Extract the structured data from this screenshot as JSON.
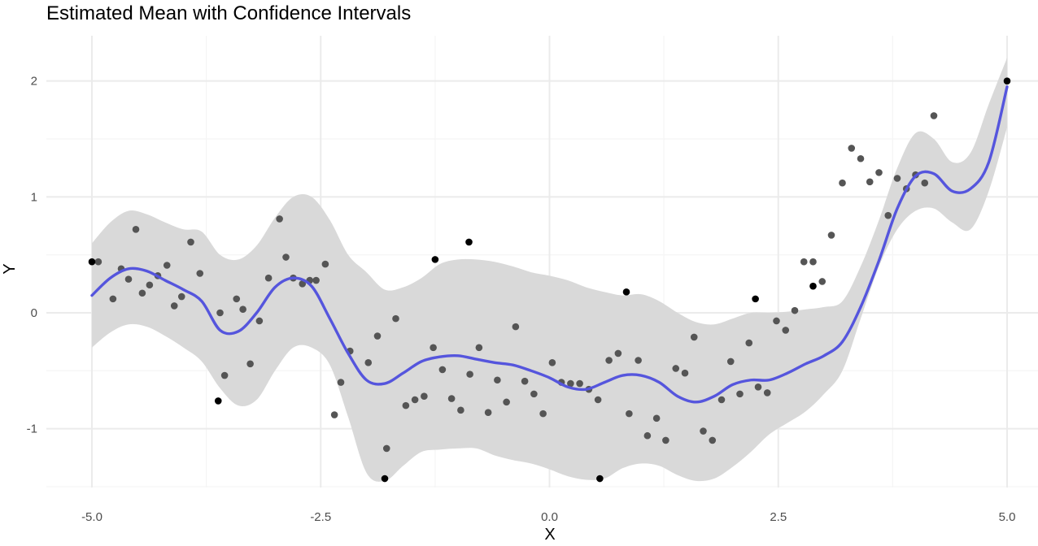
{
  "chart_data": {
    "type": "line",
    "title": "Estimated Mean with Confidence Intervals",
    "xlabel": "X",
    "ylabel": "Y",
    "xlim": [
      -5.0,
      5.0
    ],
    "ylim": [
      -1.5,
      2.0
    ],
    "x_ticks": [
      -5.0,
      -2.5,
      0.0,
      2.5,
      5.0
    ],
    "x_tick_labels": [
      "-5.0",
      "-2.5",
      "0.0",
      "2.5",
      "5.0"
    ],
    "y_ticks": [
      -1,
      0,
      1,
      2
    ],
    "y_tick_labels": [
      "-1",
      "0",
      "1",
      "2"
    ],
    "grid": true,
    "legend": "none",
    "colors": {
      "mean_line": "#5555dd",
      "ribbon": "#d9d9d9",
      "points": "#555555",
      "highlight_points": "#000000",
      "grid_major": "#ebebeb",
      "grid_minor": "#f5f5f5"
    },
    "series": [
      {
        "kind": "ribbon",
        "x": [
          -5.0,
          -4.8,
          -4.6,
          -4.4,
          -4.2,
          -4.0,
          -3.8,
          -3.6,
          -3.4,
          -3.2,
          -3.0,
          -2.8,
          -2.6,
          -2.4,
          -2.2,
          -2.0,
          -1.8,
          -1.6,
          -1.4,
          -1.2,
          -1.0,
          -0.8,
          -0.6,
          -0.4,
          -0.2,
          0.0,
          0.2,
          0.4,
          0.6,
          0.8,
          1.0,
          1.2,
          1.4,
          1.6,
          1.8,
          2.0,
          2.2,
          2.4,
          2.6,
          2.8,
          3.0,
          3.2,
          3.4,
          3.6,
          3.8,
          4.0,
          4.2,
          4.4,
          4.6,
          4.8,
          5.0
        ],
        "lower": [
          -0.3,
          -0.17,
          -0.1,
          -0.12,
          -0.2,
          -0.3,
          -0.42,
          -0.65,
          -0.8,
          -0.75,
          -0.5,
          -0.3,
          -0.3,
          -0.45,
          -0.9,
          -1.38,
          -1.45,
          -1.32,
          -1.2,
          -1.18,
          -1.17,
          -1.17,
          -1.23,
          -1.27,
          -1.3,
          -1.35,
          -1.41,
          -1.44,
          -1.43,
          -1.34,
          -1.3,
          -1.32,
          -1.4,
          -1.45,
          -1.43,
          -1.33,
          -1.2,
          -1.05,
          -0.95,
          -0.85,
          -0.7,
          -0.5,
          -0.05,
          0.4,
          0.72,
          0.88,
          0.9,
          0.78,
          0.72,
          1.05,
          1.6
        ],
        "upper": [
          0.6,
          0.78,
          0.88,
          0.85,
          0.78,
          0.72,
          0.7,
          0.5,
          0.46,
          0.58,
          0.82,
          1.0,
          1.0,
          0.8,
          0.5,
          0.35,
          0.2,
          0.22,
          0.3,
          0.42,
          0.46,
          0.46,
          0.44,
          0.4,
          0.35,
          0.32,
          0.28,
          0.22,
          0.18,
          0.15,
          0.16,
          0.1,
          0.0,
          -0.08,
          -0.1,
          -0.05,
          0.0,
          0.0,
          0.01,
          0.03,
          0.05,
          0.1,
          0.4,
          0.8,
          1.25,
          1.55,
          1.5,
          1.3,
          1.38,
          1.8,
          2.2
        ]
      },
      {
        "kind": "line",
        "x": [
          -5.0,
          -4.8,
          -4.6,
          -4.4,
          -4.2,
          -4.0,
          -3.8,
          -3.6,
          -3.4,
          -3.2,
          -3.0,
          -2.8,
          -2.6,
          -2.4,
          -2.2,
          -2.0,
          -1.8,
          -1.6,
          -1.4,
          -1.2,
          -1.0,
          -0.8,
          -0.6,
          -0.4,
          -0.2,
          0.0,
          0.2,
          0.4,
          0.6,
          0.8,
          1.0,
          1.2,
          1.4,
          1.6,
          1.8,
          2.0,
          2.2,
          2.4,
          2.6,
          2.8,
          3.0,
          3.2,
          3.4,
          3.6,
          3.8,
          4.0,
          4.2,
          4.4,
          4.6,
          4.8,
          5.0
        ],
        "y": [
          0.15,
          0.3,
          0.38,
          0.36,
          0.28,
          0.2,
          0.1,
          -0.15,
          -0.16,
          0.0,
          0.22,
          0.3,
          0.23,
          -0.05,
          -0.35,
          -0.58,
          -0.61,
          -0.52,
          -0.42,
          -0.38,
          -0.37,
          -0.4,
          -0.43,
          -0.45,
          -0.5,
          -0.56,
          -0.64,
          -0.66,
          -0.6,
          -0.54,
          -0.54,
          -0.6,
          -0.72,
          -0.77,
          -0.72,
          -0.62,
          -0.58,
          -0.58,
          -0.52,
          -0.44,
          -0.37,
          -0.25,
          0.05,
          0.45,
          0.9,
          1.18,
          1.2,
          1.05,
          1.07,
          1.3,
          1.95
        ]
      },
      {
        "kind": "points",
        "points": [
          [
            -4.93,
            0.44
          ],
          [
            -4.77,
            0.12
          ],
          [
            -4.68,
            0.38
          ],
          [
            -4.6,
            0.29
          ],
          [
            -4.52,
            0.72
          ],
          [
            -4.45,
            0.17
          ],
          [
            -4.37,
            0.24
          ],
          [
            -4.28,
            0.32
          ],
          [
            -4.18,
            0.41
          ],
          [
            -4.1,
            0.06
          ],
          [
            -4.02,
            0.14
          ],
          [
            -3.92,
            0.61
          ],
          [
            -3.82,
            0.34
          ],
          [
            -3.6,
            0.0
          ],
          [
            -3.55,
            -0.54
          ],
          [
            -3.42,
            0.12
          ],
          [
            -3.35,
            0.03
          ],
          [
            -3.27,
            -0.44
          ],
          [
            -3.17,
            -0.07
          ],
          [
            -3.07,
            0.3
          ],
          [
            -2.95,
            0.81
          ],
          [
            -2.88,
            0.48
          ],
          [
            -2.8,
            0.3
          ],
          [
            -2.7,
            0.25
          ],
          [
            -2.62,
            0.28
          ],
          [
            -2.55,
            0.28
          ],
          [
            -2.45,
            0.42
          ],
          [
            -2.35,
            -0.88
          ],
          [
            -2.28,
            -0.6
          ],
          [
            -2.18,
            -0.33
          ],
          [
            -1.98,
            -0.43
          ],
          [
            -1.88,
            -0.2
          ],
          [
            -1.78,
            -1.17
          ],
          [
            -1.68,
            -0.05
          ],
          [
            -1.57,
            -0.8
          ],
          [
            -1.47,
            -0.75
          ],
          [
            -1.37,
            -0.72
          ],
          [
            -1.27,
            -0.3
          ],
          [
            -1.17,
            -0.49
          ],
          [
            -1.07,
            -0.74
          ],
          [
            -0.97,
            -0.84
          ],
          [
            -0.87,
            -0.53
          ],
          [
            -0.77,
            -0.3
          ],
          [
            -0.67,
            -0.86
          ],
          [
            -0.57,
            -0.58
          ],
          [
            -0.47,
            -0.77
          ],
          [
            -0.37,
            -0.12
          ],
          [
            -0.27,
            -0.59
          ],
          [
            -0.17,
            -0.7
          ],
          [
            -0.07,
            -0.87
          ],
          [
            0.03,
            -0.43
          ],
          [
            0.13,
            -0.6
          ],
          [
            0.23,
            -0.61
          ],
          [
            0.33,
            -0.61
          ],
          [
            0.43,
            -0.66
          ],
          [
            0.53,
            -0.75
          ],
          [
            0.65,
            -0.41
          ],
          [
            0.75,
            -0.35
          ],
          [
            0.87,
            -0.87
          ],
          [
            0.97,
            -0.41
          ],
          [
            1.07,
            -1.06
          ],
          [
            1.17,
            -0.91
          ],
          [
            1.27,
            -1.1
          ],
          [
            1.38,
            -0.48
          ],
          [
            1.48,
            -0.52
          ],
          [
            1.58,
            -0.21
          ],
          [
            1.68,
            -1.02
          ],
          [
            1.78,
            -1.1
          ],
          [
            1.88,
            -0.75
          ],
          [
            1.98,
            -0.42
          ],
          [
            2.08,
            -0.7
          ],
          [
            2.18,
            -0.26
          ],
          [
            2.28,
            -0.64
          ],
          [
            2.38,
            -0.69
          ],
          [
            2.48,
            -0.07
          ],
          [
            2.58,
            -0.15
          ],
          [
            2.68,
            0.02
          ],
          [
            2.78,
            0.44
          ],
          [
            2.88,
            0.44
          ],
          [
            2.98,
            0.27
          ],
          [
            3.08,
            0.67
          ],
          [
            3.2,
            1.12
          ],
          [
            3.3,
            1.42
          ],
          [
            3.4,
            1.33
          ],
          [
            3.5,
            1.13
          ],
          [
            3.6,
            1.21
          ],
          [
            3.7,
            0.84
          ],
          [
            3.8,
            1.16
          ],
          [
            3.9,
            1.07
          ],
          [
            4.0,
            1.19
          ],
          [
            4.1,
            1.12
          ],
          [
            4.2,
            1.7
          ]
        ]
      },
      {
        "kind": "highlight_points",
        "points": [
          [
            -5.0,
            0.44
          ],
          [
            -3.62,
            -0.76
          ],
          [
            -1.8,
            -1.43
          ],
          [
            -1.25,
            0.46
          ],
          [
            -0.88,
            0.61
          ],
          [
            0.55,
            -1.43
          ],
          [
            0.84,
            0.18
          ],
          [
            2.25,
            0.12
          ],
          [
            2.88,
            0.23
          ],
          [
            5.0,
            2.0
          ]
        ]
      }
    ]
  }
}
